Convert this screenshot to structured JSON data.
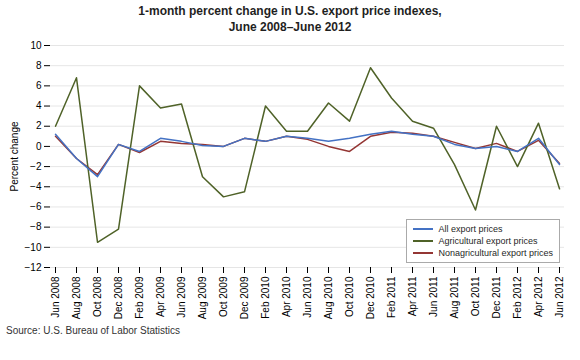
{
  "chart_data": {
    "type": "line",
    "title": "1-month percent change in U.S. export price indexes,\nJune 2008–June 2012",
    "ylabel": "Percent change",
    "source": "Source: U.S. Bureau of Labor Statistics",
    "categories": [
      "Jun 2008",
      "Aug 2008",
      "Oct 2008",
      "Dec 2008",
      "Feb 2009",
      "Apr 2009",
      "Jun 2009",
      "Aug 2009",
      "Oct 2009",
      "Dec 2009",
      "Feb 2010",
      "Apr 2010",
      "Jun 2010",
      "Aug 2010",
      "Oct 2010",
      "Dec 2010",
      "Feb 2011",
      "Apr 2011",
      "Jun 2011",
      "Aug 2011",
      "Oct 2011",
      "Dec 2011",
      "Feb 2012",
      "Apr 2012",
      "Jun 2012"
    ],
    "series": [
      {
        "name": "All export prices",
        "color": "#4472C4",
        "values": [
          1.2,
          -1.2,
          -3.0,
          0.2,
          -0.5,
          0.8,
          0.5,
          0.1,
          0.0,
          0.8,
          0.5,
          1.0,
          0.8,
          0.5,
          0.8,
          1.2,
          1.5,
          1.2,
          1.0,
          0.2,
          -0.2,
          0.0,
          -0.5,
          0.8,
          -1.8
        ]
      },
      {
        "name": "Agricultural export prices",
        "color": "#4F6228",
        "values": [
          2.0,
          6.8,
          -9.5,
          -8.2,
          6.0,
          3.8,
          4.2,
          -3.0,
          -5.0,
          -4.5,
          4.0,
          1.5,
          1.5,
          4.3,
          2.5,
          7.8,
          4.8,
          2.5,
          1.8,
          -1.8,
          -6.3,
          2.0,
          -2.0,
          2.3,
          -4.2
        ]
      },
      {
        "name": "Nonagricultural export prices",
        "color": "#943634",
        "values": [
          1.0,
          -1.2,
          -2.8,
          0.2,
          -0.6,
          0.5,
          0.3,
          0.2,
          0.0,
          0.8,
          0.5,
          1.0,
          0.7,
          0.0,
          -0.5,
          1.0,
          1.4,
          1.3,
          1.0,
          0.4,
          -0.2,
          0.3,
          -0.5,
          0.6,
          -1.7
        ]
      }
    ],
    "ylim": [
      -12,
      10
    ],
    "yticks": [
      -12,
      -10,
      -8,
      -6,
      -4,
      -2,
      0,
      2,
      4,
      6,
      8,
      10
    ],
    "grid": true,
    "legend": "lower right"
  }
}
